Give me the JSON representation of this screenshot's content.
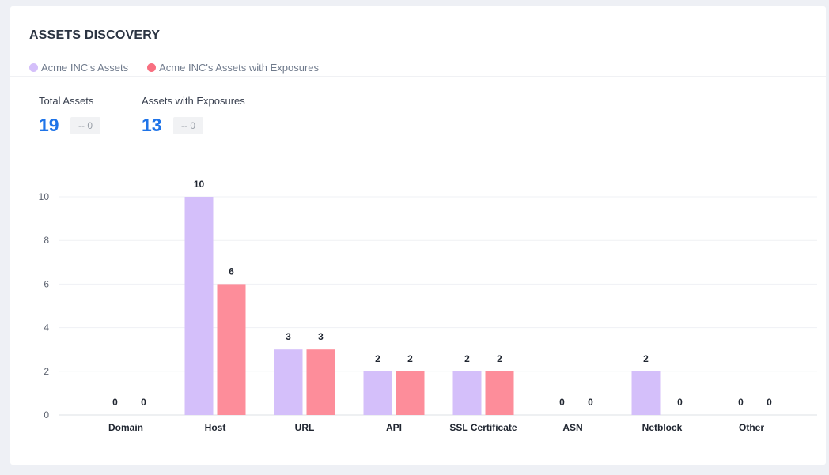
{
  "card": {
    "title": "ASSETS DISCOVERY"
  },
  "legend": [
    {
      "label": "Acme INC's Assets",
      "color": "#d4bffa"
    },
    {
      "label": "Acme INC's Assets with Exposures",
      "color": "#f86f80"
    }
  ],
  "kpis": {
    "total": {
      "label": "Total Assets",
      "value": "19",
      "delta": "-- 0"
    },
    "exposures": {
      "label": "Assets with Exposures",
      "value": "13",
      "delta": "-- 0"
    }
  },
  "chart_data": {
    "type": "bar",
    "categories": [
      "Domain",
      "Host",
      "URL",
      "API",
      "SSL Certificate",
      "ASN",
      "Netblock",
      "Other"
    ],
    "series": [
      {
        "name": "Acme INC's Assets",
        "values": [
          0,
          10,
          3,
          2,
          2,
          0,
          2,
          0
        ],
        "color": "#d4bffa"
      },
      {
        "name": "Acme INC's Assets with Exposures",
        "values": [
          0,
          6,
          3,
          2,
          2,
          0,
          0,
          0
        ],
        "color": "#fd8d9a"
      }
    ],
    "yticks": [
      0,
      2,
      4,
      6,
      8,
      10
    ],
    "ylim": [
      0,
      10
    ],
    "grid": true,
    "legend_position": "top-left"
  }
}
